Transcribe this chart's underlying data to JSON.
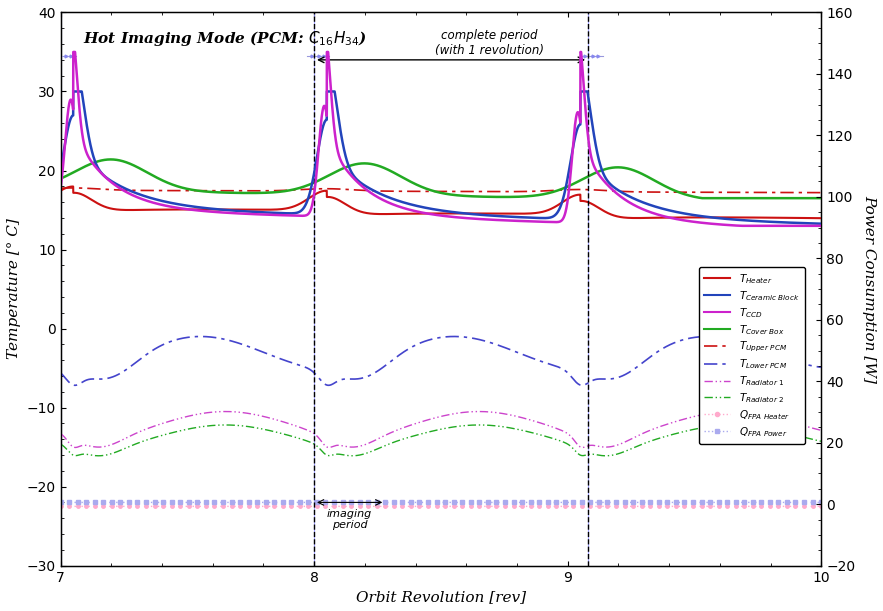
{
  "title": "Hot Imaging Mode (PCM: $C_{16}H_{34}$)",
  "xlabel": "Orbit Revolution [rev]",
  "ylabel_left": "Temperature [° C]",
  "ylabel_right": "Power Consumption [W]",
  "xlim": [
    7,
    10
  ],
  "ylim_left": [
    -30,
    40
  ],
  "ylim_right": [
    -20,
    160
  ],
  "background_color": "#ffffff",
  "annotation_complete": "complete period\n(with 1 revolution)",
  "annotation_imaging": "imaging\nperiod",
  "imaging_start": 8.0,
  "imaging_end": 8.28,
  "period_start": 8.0,
  "period_end": 9.08
}
